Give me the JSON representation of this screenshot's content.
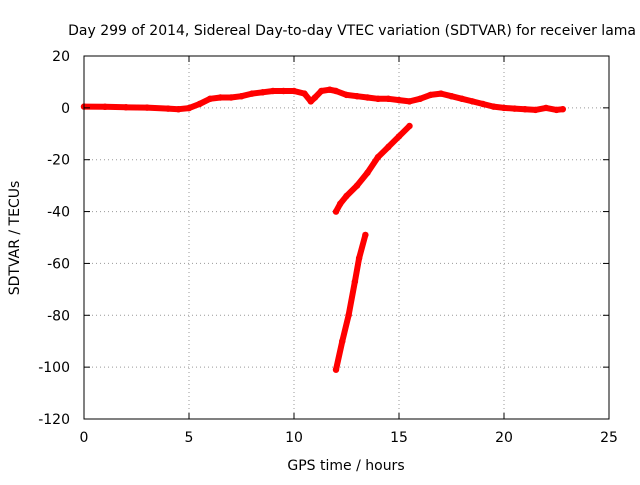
{
  "chart_data": {
    "type": "scatter",
    "title": "Day 299 of 2014, Sidereal Day-to-day VTEC variation (SDTVAR) for receiver lama",
    "xlabel": "GPS time / hours",
    "ylabel": "SDTVAR / TECUs",
    "xlim": [
      0,
      25
    ],
    "ylim": [
      -120,
      20
    ],
    "xticks": [
      0,
      5,
      10,
      15,
      20,
      25
    ],
    "yticks": [
      -120,
      -100,
      -80,
      -60,
      -40,
      -20,
      0,
      20
    ],
    "grid": true,
    "legend": "none",
    "series": [
      {
        "color": "#ff0000",
        "points": [
          [
            0,
            0.5
          ],
          [
            1,
            0.4
          ],
          [
            2,
            0.2
          ],
          [
            3,
            0.1
          ],
          [
            4,
            -0.3
          ],
          [
            4.5,
            -0.5
          ],
          [
            5,
            -0.1
          ],
          [
            5.5,
            1.5
          ],
          [
            6,
            3.5
          ],
          [
            6.5,
            4.0
          ],
          [
            7,
            4.0
          ],
          [
            7.5,
            4.5
          ],
          [
            8,
            5.5
          ],
          [
            8.5,
            6.0
          ],
          [
            9,
            6.5
          ],
          [
            9.5,
            6.5
          ],
          [
            10,
            6.5
          ],
          [
            10.5,
            5.5
          ],
          [
            10.8,
            2.5
          ],
          [
            11,
            4.0
          ],
          [
            11.3,
            6.5
          ],
          [
            11.7,
            7.0
          ],
          [
            12,
            6.5
          ],
          [
            12.5,
            5.0
          ],
          [
            13,
            4.5
          ],
          [
            13.5,
            4.0
          ],
          [
            14,
            3.5
          ],
          [
            14.5,
            3.5
          ],
          [
            15,
            3.0
          ],
          [
            15.5,
            2.5
          ],
          [
            16,
            3.5
          ],
          [
            16.5,
            5.0
          ],
          [
            17,
            5.5
          ],
          [
            17.5,
            4.5
          ],
          [
            18,
            3.5
          ],
          [
            18.5,
            2.5
          ],
          [
            19,
            1.5
          ],
          [
            19.5,
            0.5
          ],
          [
            20,
            0.0
          ],
          [
            20.5,
            -0.3
          ],
          [
            21,
            -0.5
          ],
          [
            21.5,
            -0.8
          ],
          [
            22,
            0.0
          ],
          [
            22.5,
            -0.8
          ],
          [
            22.8,
            -0.5
          ]
        ]
      },
      {
        "color": "#ff0000",
        "points": [
          [
            12.0,
            -40
          ],
          [
            12.2,
            -37
          ],
          [
            12.5,
            -34
          ],
          [
            13.0,
            -30
          ],
          [
            13.5,
            -25
          ],
          [
            14.0,
            -19
          ],
          [
            14.5,
            -15
          ],
          [
            15.0,
            -11
          ],
          [
            15.5,
            -7
          ]
        ]
      },
      {
        "color": "#ff0000",
        "points": [
          [
            12.0,
            -101
          ],
          [
            12.3,
            -90
          ],
          [
            12.6,
            -80
          ],
          [
            12.9,
            -67
          ],
          [
            13.1,
            -58
          ],
          [
            13.4,
            -49
          ]
        ]
      }
    ]
  }
}
